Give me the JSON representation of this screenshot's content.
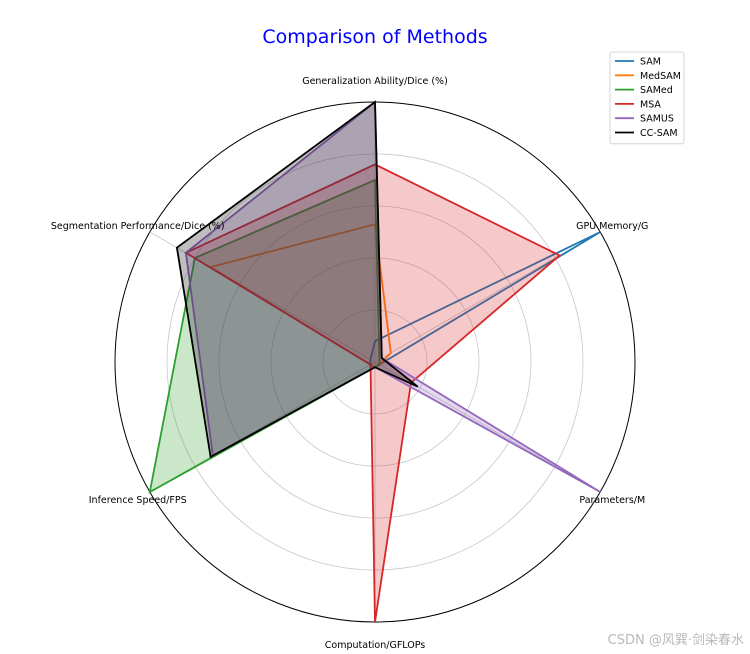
{
  "chart_data": {
    "type": "radar",
    "title": "Comparison of Methods",
    "title_color": "#0000ff",
    "axes": [
      "Generalization Ability/Dice (%)",
      "GPU Memory/G",
      "Parameters/M",
      "Computation/GFLOPs",
      "Inference Speed/FPS",
      "Segmentation Performance/Dice (%)"
    ],
    "rlim": [
      0,
      1
    ],
    "grid_rings": [
      0.2,
      0.4,
      0.6,
      0.8,
      1.0
    ],
    "grid": true,
    "legend_position": "top-right",
    "series": [
      {
        "name": "SAM",
        "color": "#1f77b4",
        "values": [
          0.08,
          1.0,
          0.02,
          0.02,
          0.02,
          0.02
        ],
        "fill": false
      },
      {
        "name": "MedSAM",
        "color": "#ff7f0e",
        "values": [
          0.53,
          0.07,
          0.02,
          0.02,
          0.02,
          0.73
        ],
        "fill": false
      },
      {
        "name": "SAMed",
        "color": "#2ca02c",
        "values": [
          0.7,
          0.02,
          0.02,
          0.02,
          1.0,
          0.8
        ],
        "fill": true
      },
      {
        "name": "MSA",
        "color": "#d62728",
        "values": [
          0.76,
          0.82,
          0.16,
          1.0,
          0.02,
          0.84
        ],
        "fill": true
      },
      {
        "name": "SAMUS",
        "color": "#9467bd",
        "values": [
          1.0,
          0.03,
          1.0,
          0.02,
          0.72,
          0.84
        ],
        "fill": true
      },
      {
        "name": "CC-SAM",
        "color": "#000000",
        "values": [
          1.0,
          0.03,
          0.19,
          0.02,
          0.73,
          0.88
        ],
        "fill": true
      }
    ]
  },
  "watermark": "CSDN @风巽·剑染春水"
}
